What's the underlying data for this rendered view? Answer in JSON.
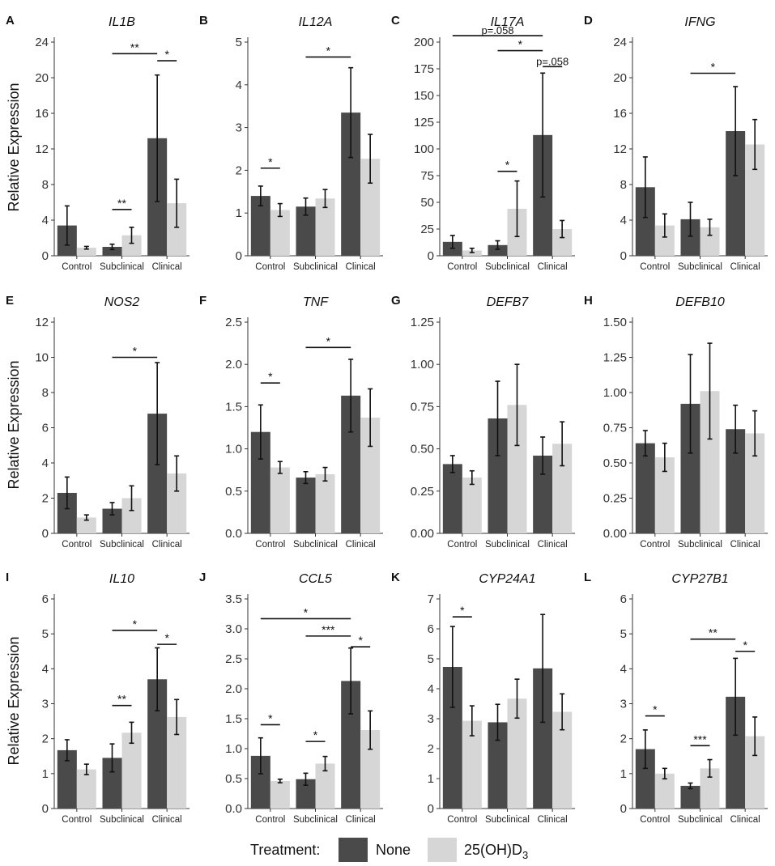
{
  "colors": {
    "none": "#4a4a4a",
    "d3": "#d6d6d6",
    "axis": "#333333"
  },
  "y_axis_title": "Relative Expression",
  "categories": [
    "Control",
    "Subclinical",
    "Clinical"
  ],
  "legend": {
    "title": "Treatment:",
    "items": [
      {
        "label": "None",
        "color": "#4a4a4a"
      },
      {
        "label": "25(OH)D",
        "sub": "3",
        "color": "#d6d6d6"
      }
    ]
  },
  "chart_data": [
    {
      "type": "bar",
      "letter": "A",
      "title": "IL1B",
      "ylim": [
        0,
        24
      ],
      "ticks": [
        0,
        4,
        8,
        12,
        16,
        20,
        24
      ],
      "categories": [
        "Control",
        "Subclinical",
        "Clinical"
      ],
      "series": [
        {
          "name": "None",
          "values": [
            3.4,
            1.0,
            13.2
          ],
          "err": [
            2.2,
            0.3,
            7.1
          ]
        },
        {
          "name": "25(OH)D3",
          "values": [
            0.9,
            2.3,
            5.9
          ],
          "err": [
            0.15,
            0.9,
            2.7
          ]
        }
      ],
      "sig": [
        {
          "label": "**",
          "x1": [
            1,
            0
          ],
          "x2": [
            2,
            0
          ],
          "y": 22.7
        },
        {
          "label": "*",
          "x1": [
            2,
            0
          ],
          "x2": [
            2,
            1
          ],
          "y": 21.9
        },
        {
          "label": "**",
          "x1": [
            1,
            0
          ],
          "x2": [
            1,
            1
          ],
          "y": 5.2
        }
      ]
    },
    {
      "type": "bar",
      "letter": "B",
      "title": "IL12A",
      "ylim": [
        0,
        5
      ],
      "ticks": [
        0,
        1,
        2,
        3,
        4,
        5
      ],
      "categories": [
        "Control",
        "Subclinical",
        "Clinical"
      ],
      "series": [
        {
          "name": "None",
          "values": [
            1.4,
            1.15,
            3.35
          ],
          "err": [
            0.23,
            0.2,
            1.05
          ]
        },
        {
          "name": "25(OH)D3",
          "values": [
            1.07,
            1.34,
            2.27
          ],
          "err": [
            0.15,
            0.21,
            0.57
          ]
        }
      ],
      "sig": [
        {
          "label": "*",
          "x1": [
            1,
            0
          ],
          "x2": [
            2,
            0
          ],
          "y": 4.65
        },
        {
          "label": "*",
          "x1": [
            0,
            0
          ],
          "x2": [
            0,
            1
          ],
          "y": 2.05
        }
      ]
    },
    {
      "type": "bar",
      "letter": "C",
      "title": "IL17A",
      "ylim": [
        0,
        200
      ],
      "ticks": [
        0,
        25,
        50,
        75,
        100,
        125,
        150,
        175,
        200
      ],
      "categories": [
        "Control",
        "Subclinical",
        "Clinical"
      ],
      "series": [
        {
          "name": "None",
          "values": [
            13,
            10,
            113
          ],
          "err": [
            6,
            4,
            58
          ]
        },
        {
          "name": "25(OH)D3",
          "values": [
            5,
            44,
            25
          ],
          "err": [
            2,
            26,
            8
          ]
        }
      ],
      "sig": [
        {
          "label": "p=.058",
          "x1": [
            0,
            0
          ],
          "x2": [
            2,
            0
          ],
          "y": 206
        },
        {
          "label": "*",
          "x1": [
            1,
            0
          ],
          "x2": [
            2,
            0
          ],
          "y": 192
        },
        {
          "label": "p=.058",
          "x1": [
            2,
            0
          ],
          "x2": [
            2,
            1
          ],
          "y": 177
        },
        {
          "label": "*",
          "x1": [
            1,
            0
          ],
          "x2": [
            1,
            1
          ],
          "y": 79
        }
      ]
    },
    {
      "type": "bar",
      "letter": "D",
      "title": "IFNG",
      "ylim": [
        0,
        24
      ],
      "ticks": [
        0,
        4,
        8,
        12,
        16,
        20,
        24
      ],
      "categories": [
        "Control",
        "Subclinical",
        "Clinical"
      ],
      "series": [
        {
          "name": "None",
          "values": [
            7.7,
            4.1,
            14.0
          ],
          "err": [
            3.4,
            1.9,
            5.0
          ]
        },
        {
          "name": "25(OH)D3",
          "values": [
            3.4,
            3.2,
            12.5
          ],
          "err": [
            1.3,
            0.9,
            2.8
          ]
        }
      ],
      "sig": [
        {
          "label": "*",
          "x1": [
            1,
            0
          ],
          "x2": [
            2,
            0
          ],
          "y": 20.5
        }
      ]
    },
    {
      "type": "bar",
      "letter": "E",
      "title": "NOS2",
      "ylim": [
        0,
        12
      ],
      "ticks": [
        0,
        2,
        4,
        6,
        8,
        10,
        12
      ],
      "categories": [
        "Control",
        "Subclinical",
        "Clinical"
      ],
      "series": [
        {
          "name": "None",
          "values": [
            2.3,
            1.4,
            6.8
          ],
          "err": [
            0.9,
            0.35,
            2.9
          ]
        },
        {
          "name": "25(OH)D3",
          "values": [
            0.9,
            2.0,
            3.4
          ],
          "err": [
            0.15,
            0.7,
            1.0
          ]
        }
      ],
      "sig": [
        {
          "label": "*",
          "x1": [
            1,
            0
          ],
          "x2": [
            2,
            0
          ],
          "y": 10.0
        }
      ]
    },
    {
      "type": "bar",
      "letter": "F",
      "title": "TNF",
      "ylim": [
        0,
        2.5
      ],
      "ticks": [
        "0.0",
        "0.5",
        "1.0",
        "1.5",
        "2.0",
        "2.5"
      ],
      "categories": [
        "Control",
        "Subclinical",
        "Clinical"
      ],
      "series": [
        {
          "name": "None",
          "values": [
            1.2,
            0.66,
            1.63
          ],
          "err": [
            0.32,
            0.07,
            0.43
          ]
        },
        {
          "name": "25(OH)D3",
          "values": [
            0.78,
            0.7,
            1.37
          ],
          "err": [
            0.07,
            0.08,
            0.34
          ]
        }
      ],
      "sig": [
        {
          "label": "*",
          "x1": [
            1,
            0
          ],
          "x2": [
            2,
            0
          ],
          "y": 2.2
        },
        {
          "label": "*",
          "x1": [
            0,
            0
          ],
          "x2": [
            0,
            1
          ],
          "y": 1.78
        }
      ]
    },
    {
      "type": "bar",
      "letter": "G",
      "title": "DEFB7",
      "ylim": [
        0,
        1.25
      ],
      "ticks": [
        "0.00",
        "0.25",
        "0.50",
        "0.75",
        "1.00",
        "1.25"
      ],
      "categories": [
        "Control",
        "Subclinical",
        "Clinical"
      ],
      "series": [
        {
          "name": "None",
          "values": [
            0.41,
            0.68,
            0.46
          ],
          "err": [
            0.05,
            0.22,
            0.11
          ]
        },
        {
          "name": "25(OH)D3",
          "values": [
            0.33,
            0.76,
            0.53
          ],
          "err": [
            0.04,
            0.24,
            0.13
          ]
        }
      ],
      "sig": []
    },
    {
      "type": "bar",
      "letter": "H",
      "title": "DEFB10",
      "ylim": [
        0,
        1.5
      ],
      "ticks": [
        "0.00",
        "0.25",
        "0.50",
        "0.75",
        "1.00",
        "1.25",
        "1.50"
      ],
      "categories": [
        "Control",
        "Subclinical",
        "Clinical"
      ],
      "series": [
        {
          "name": "None",
          "values": [
            0.64,
            0.92,
            0.74
          ],
          "err": [
            0.09,
            0.35,
            0.17
          ]
        },
        {
          "name": "25(OH)D3",
          "values": [
            0.54,
            1.01,
            0.71
          ],
          "err": [
            0.1,
            0.34,
            0.16
          ]
        }
      ],
      "sig": []
    },
    {
      "type": "bar",
      "letter": "I",
      "title": "IL10",
      "ylim": [
        0,
        6
      ],
      "ticks": [
        0,
        1,
        2,
        3,
        4,
        5,
        6
      ],
      "categories": [
        "Control",
        "Subclinical",
        "Clinical"
      ],
      "series": [
        {
          "name": "None",
          "values": [
            1.67,
            1.45,
            3.7
          ],
          "err": [
            0.3,
            0.4,
            0.9
          ]
        },
        {
          "name": "25(OH)D3",
          "values": [
            1.12,
            2.17,
            2.62
          ],
          "err": [
            0.15,
            0.3,
            0.5
          ]
        }
      ],
      "sig": [
        {
          "label": "*",
          "x1": [
            1,
            0
          ],
          "x2": [
            2,
            0
          ],
          "y": 5.1
        },
        {
          "label": "*",
          "x1": [
            2,
            0
          ],
          "x2": [
            2,
            1
          ],
          "y": 4.7
        },
        {
          "label": "**",
          "x1": [
            1,
            0
          ],
          "x2": [
            1,
            1
          ],
          "y": 2.95
        }
      ]
    },
    {
      "type": "bar",
      "letter": "J",
      "title": "CCL5",
      "ylim": [
        0,
        3.5
      ],
      "ticks": [
        "0.0",
        "0.5",
        "1.0",
        "1.5",
        "2.0",
        "2.5",
        "3.0",
        "3.5"
      ],
      "categories": [
        "Control",
        "Subclinical",
        "Clinical"
      ],
      "series": [
        {
          "name": "None",
          "values": [
            0.88,
            0.49,
            2.13
          ],
          "err": [
            0.3,
            0.1,
            0.55
          ]
        },
        {
          "name": "25(OH)D3",
          "values": [
            0.46,
            0.75,
            1.31
          ],
          "err": [
            0.03,
            0.12,
            0.32
          ]
        }
      ],
      "sig": [
        {
          "label": "*",
          "x1": [
            0,
            0
          ],
          "x2": [
            2,
            0
          ],
          "y": 3.17
        },
        {
          "label": "***",
          "x1": [
            1,
            0
          ],
          "x2": [
            2,
            0
          ],
          "y": 2.88
        },
        {
          "label": "*",
          "x1": [
            2,
            0
          ],
          "x2": [
            2,
            1
          ],
          "y": 2.7
        },
        {
          "label": "*",
          "x1": [
            0,
            0
          ],
          "x2": [
            0,
            1
          ],
          "y": 1.4
        },
        {
          "label": "*",
          "x1": [
            1,
            0
          ],
          "x2": [
            1,
            1
          ],
          "y": 1.12
        }
      ]
    },
    {
      "type": "bar",
      "letter": "K",
      "title": "CYP24A1",
      "ylim": [
        0,
        7
      ],
      "ticks": [
        0,
        1,
        2,
        3,
        4,
        5,
        6,
        7
      ],
      "categories": [
        "Control",
        "Subclinical",
        "Clinical"
      ],
      "series": [
        {
          "name": "None",
          "values": [
            4.73,
            2.88,
            4.68
          ],
          "err": [
            1.35,
            0.6,
            1.8
          ]
        },
        {
          "name": "25(OH)D3",
          "values": [
            2.93,
            3.67,
            3.23
          ],
          "err": [
            0.5,
            0.65,
            0.6
          ]
        }
      ],
      "sig": [
        {
          "label": "*",
          "x1": [
            0,
            0
          ],
          "x2": [
            0,
            1
          ],
          "y": 6.4
        }
      ]
    },
    {
      "type": "bar",
      "letter": "L",
      "title": "CYP27B1",
      "ylim": [
        0,
        6
      ],
      "ticks": [
        0,
        1,
        2,
        3,
        4,
        5,
        6
      ],
      "categories": [
        "Control",
        "Subclinical",
        "Clinical"
      ],
      "series": [
        {
          "name": "None",
          "values": [
            1.7,
            0.65,
            3.2
          ],
          "err": [
            0.55,
            0.08,
            1.1
          ]
        },
        {
          "name": "25(OH)D3",
          "values": [
            1.0,
            1.15,
            2.07
          ],
          "err": [
            0.15,
            0.25,
            0.55
          ]
        }
      ],
      "sig": [
        {
          "label": "**",
          "x1": [
            1,
            0
          ],
          "x2": [
            2,
            0
          ],
          "y": 4.85
        },
        {
          "label": "*",
          "x1": [
            2,
            0
          ],
          "x2": [
            2,
            1
          ],
          "y": 4.5
        },
        {
          "label": "*",
          "x1": [
            0,
            0
          ],
          "x2": [
            0,
            1
          ],
          "y": 2.65
        },
        {
          "label": "***",
          "x1": [
            1,
            0
          ],
          "x2": [
            1,
            1
          ],
          "y": 1.8
        }
      ]
    }
  ]
}
